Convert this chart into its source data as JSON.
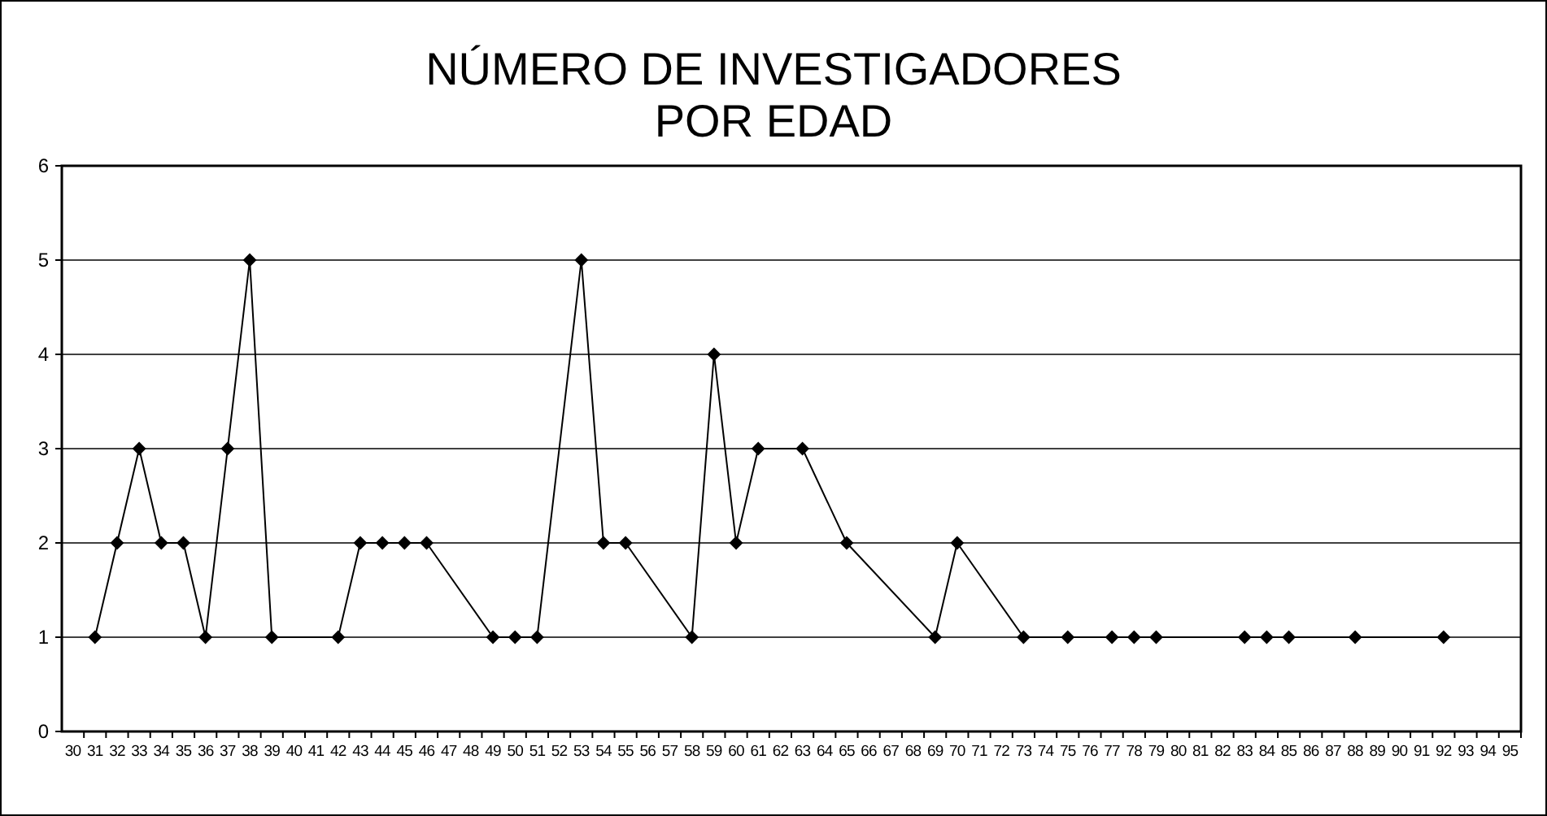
{
  "chart_data": {
    "type": "line",
    "title": "NÚMERO DE INVESTIGADORES\nPOR EDAD",
    "x": [
      31,
      32,
      33,
      34,
      35,
      36,
      37,
      38,
      39,
      42,
      43,
      44,
      45,
      46,
      49,
      50,
      51,
      53,
      54,
      55,
      58,
      59,
      60,
      61,
      63,
      65,
      69,
      70,
      73,
      75,
      77,
      78,
      79,
      83,
      84,
      85,
      88,
      92
    ],
    "series": [
      {
        "color": "#000000",
        "values": [
          1,
          2,
          3,
          2,
          2,
          1,
          3,
          5,
          1,
          1,
          2,
          2,
          2,
          2,
          1,
          1,
          1,
          5,
          2,
          2,
          1,
          4,
          2,
          3,
          3,
          2,
          1,
          2,
          1,
          1,
          1,
          1,
          1,
          1,
          1,
          1,
          1,
          1
        ]
      }
    ],
    "xlim": [
      29.5,
      95.5
    ],
    "xticks": [
      30,
      31,
      32,
      33,
      34,
      35,
      36,
      37,
      38,
      39,
      40,
      41,
      42,
      43,
      44,
      45,
      46,
      47,
      48,
      49,
      50,
      51,
      52,
      53,
      54,
      55,
      56,
      57,
      58,
      59,
      60,
      61,
      62,
      63,
      64,
      65,
      66,
      67,
      68,
      69,
      70,
      71,
      72,
      73,
      74,
      75,
      76,
      77,
      78,
      79,
      80,
      81,
      82,
      83,
      84,
      85,
      86,
      87,
      88,
      89,
      90,
      91,
      92,
      93,
      94,
      95
    ],
    "ylim": [
      0,
      6
    ],
    "yticks": [
      0,
      1,
      2,
      3,
      4,
      5,
      6
    ],
    "grid": "y",
    "marker": "diamond",
    "line_style": "solid"
  }
}
